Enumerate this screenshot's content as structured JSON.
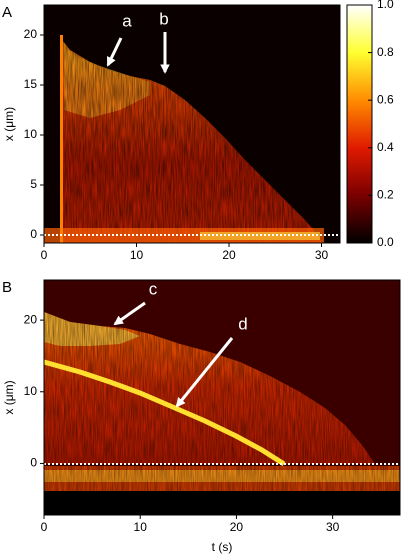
{
  "chart_data": [
    {
      "type": "heatmap",
      "panel_label": "A",
      "y_label": "x (μm)",
      "xlim": [
        0,
        32
      ],
      "ylim": [
        -0.8,
        23
      ],
      "xticks": [
        0,
        10,
        20,
        30
      ],
      "yticks": [
        0,
        5,
        10,
        15,
        20
      ],
      "annotations": [
        "a",
        "b"
      ],
      "colormap": [
        "#000000",
        "#7a0000",
        "#e01a00",
        "#ff8c00",
        "#ffff30",
        "#ffffff"
      ],
      "colorbar": {
        "clim": [
          0,
          1
        ],
        "ticks": [
          {
            "value": 0,
            "label": "0.0"
          },
          {
            "value": 0.2,
            "label": "0.2"
          },
          {
            "value": 0.4,
            "label": "0.4"
          },
          {
            "value": 0.6,
            "label": "0.6"
          },
          {
            "value": 0.8,
            "label": "0.8"
          },
          {
            "value": 1,
            "label": "1.0"
          }
        ]
      }
    },
    {
      "type": "heatmap",
      "panel_label": "B",
      "x_label": "t (s)",
      "y_label": "x (μm)",
      "xlim": [
        0,
        37
      ],
      "ylim": [
        -7.2,
        25.6
      ],
      "xticks": [
        0,
        10,
        20,
        30
      ],
      "yticks": [
        0,
        10,
        20
      ],
      "annotations": [
        "c",
        "d"
      ]
    }
  ]
}
